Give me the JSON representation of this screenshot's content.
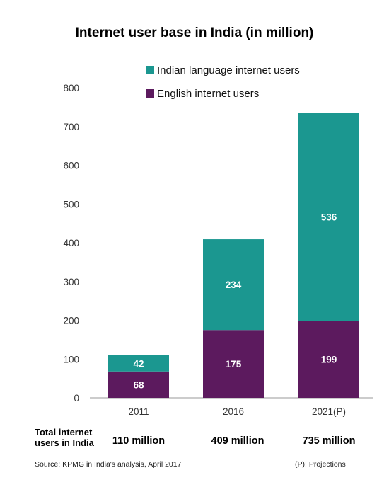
{
  "chart_data": {
    "type": "bar",
    "stacked": true,
    "title": "Internet user base in India (in million)",
    "categories": [
      "2011",
      "2016",
      "2021(P)"
    ],
    "series": [
      {
        "name": "English internet users",
        "values": [
          68,
          175,
          199
        ],
        "color": "#5c1a5e"
      },
      {
        "name": "Indian language internet users",
        "values": [
          42,
          234,
          536
        ],
        "color": "#1b9790"
      }
    ],
    "ylim": [
      0,
      800
    ],
    "yticks": [
      0,
      100,
      200,
      300,
      400,
      500,
      600,
      700,
      800
    ],
    "grid": false,
    "legend": "top-right"
  },
  "totals": {
    "label_line1": "Total internet",
    "label_line2": "users in India",
    "values": [
      "110 million",
      "409 million",
      "735 million"
    ]
  },
  "footer": {
    "source": "Source: KPMG in India's analysis, April 2017",
    "note": "(P): Projections"
  }
}
